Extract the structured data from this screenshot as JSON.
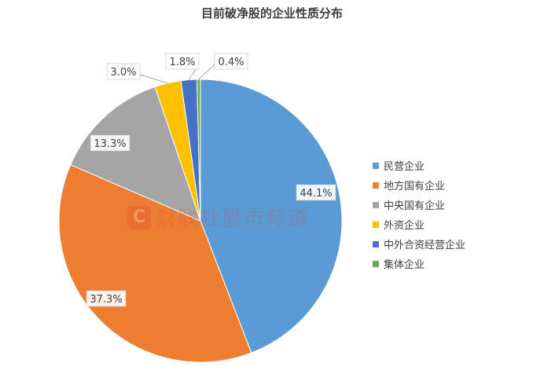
{
  "watermark": {
    "logo_char": "C",
    "text": "财联社股市频道"
  },
  "chart_data": {
    "type": "pie",
    "title": "目前破净股的企业性质分布",
    "legend_position": "right",
    "categories": [
      "民营企业",
      "地方国有企业",
      "中央国有企业",
      "外资企业",
      "中外合资经营企业",
      "集体企业"
    ],
    "values": [
      44.1,
      37.3,
      13.3,
      3.0,
      1.8,
      0.4
    ],
    "data_labels": [
      "44.1%",
      "37.3%",
      "13.3%",
      "3.0%",
      "1.8%",
      "0.4%"
    ],
    "colors": [
      "#5b9bd5",
      "#ed7d31",
      "#a5a5a5",
      "#ffc000",
      "#4472c4",
      "#70ad47"
    ]
  }
}
